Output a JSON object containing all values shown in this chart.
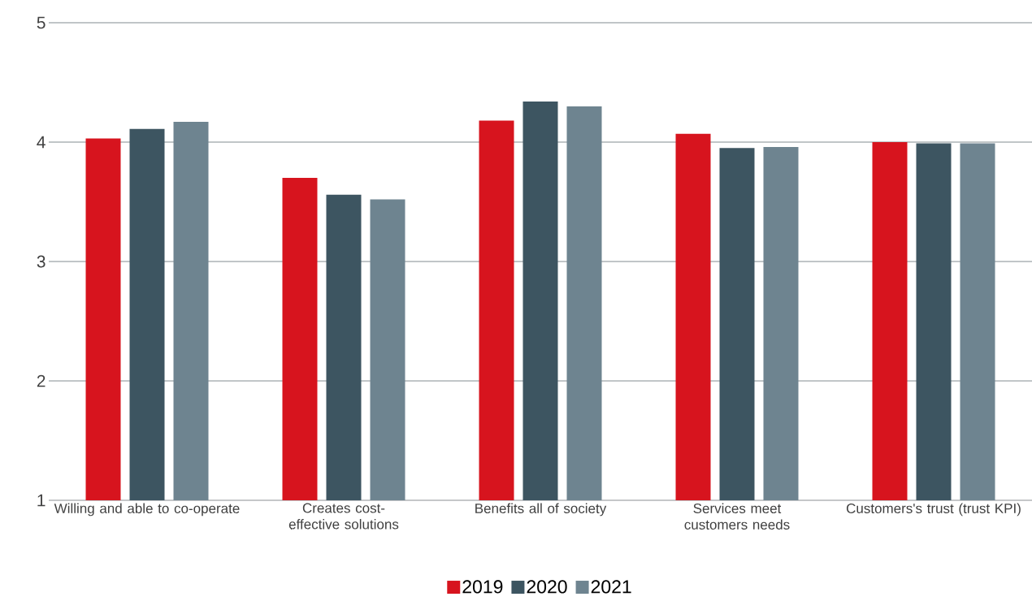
{
  "chart_data": {
    "type": "bar",
    "categories": [
      "Willing and able to co-operate",
      "Creates cost-effective solutions",
      "Benefits all of society",
      "Services meet customers needs",
      "Customers's trust (trust KPI)"
    ],
    "series": [
      {
        "name": "2019",
        "color": "#d7141e",
        "values": [
          4.03,
          3.7,
          4.18,
          4.07,
          4.0
        ]
      },
      {
        "name": "2020",
        "color": "#3d5561",
        "values": [
          4.11,
          3.56,
          4.34,
          3.95,
          3.99
        ]
      },
      {
        "name": "2021",
        "color": "#6e8490",
        "values": [
          4.17,
          3.52,
          4.3,
          3.96,
          3.99
        ]
      }
    ],
    "ylim": [
      1,
      5
    ],
    "yticks": [
      1,
      2,
      3,
      4,
      5
    ],
    "grid": "y",
    "legend": "bottom"
  }
}
